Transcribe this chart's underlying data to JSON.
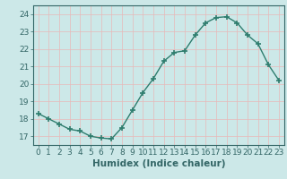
{
  "x": [
    0,
    1,
    2,
    3,
    4,
    5,
    6,
    7,
    8,
    9,
    10,
    11,
    12,
    13,
    14,
    15,
    16,
    17,
    18,
    19,
    20,
    21,
    22,
    23
  ],
  "y": [
    18.3,
    18.0,
    17.7,
    17.4,
    17.3,
    17.0,
    16.9,
    16.85,
    17.5,
    18.5,
    19.5,
    20.3,
    21.3,
    21.8,
    21.9,
    22.8,
    23.5,
    23.8,
    23.85,
    23.5,
    22.8,
    22.3,
    21.1,
    20.2
  ],
  "line_color": "#2e7d6e",
  "marker": "+",
  "marker_size": 4,
  "marker_lw": 1.2,
  "bg_color": "#cce8e8",
  "grid_color": "#e8b8b8",
  "axis_color": "#336666",
  "xlabel": "Humidex (Indice chaleur)",
  "xlim": [
    -0.5,
    23.5
  ],
  "ylim": [
    16.5,
    24.5
  ],
  "yticks": [
    17,
    18,
    19,
    20,
    21,
    22,
    23,
    24
  ],
  "xticks": [
    0,
    1,
    2,
    3,
    4,
    5,
    6,
    7,
    8,
    9,
    10,
    11,
    12,
    13,
    14,
    15,
    16,
    17,
    18,
    19,
    20,
    21,
    22,
    23
  ],
  "xlabel_fontsize": 7.5,
  "tick_fontsize": 6.5,
  "line_width": 1.0
}
